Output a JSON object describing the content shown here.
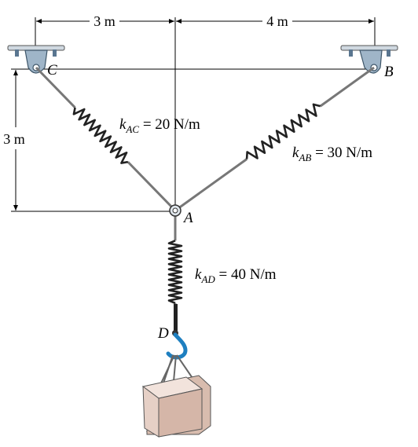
{
  "dimensions": {
    "top_left": "3 m",
    "top_right": "4 m",
    "left_vertical": "3 m"
  },
  "points": {
    "C": "C",
    "B": "B",
    "A": "A",
    "D": "D"
  },
  "springs": {
    "AC": {
      "k": "k",
      "sub": "AC",
      "value": " = 20 N/m"
    },
    "AB": {
      "k": "k",
      "sub": "AB",
      "value": " = 30 N/m"
    },
    "AD": {
      "k": "k",
      "sub": "AD",
      "value": " = 40 N/m"
    }
  },
  "colors": {
    "support": "#9fb5c8",
    "support_dark": "#5a7690",
    "hook": "#1e7fc0",
    "box": "#e9d3c9",
    "box_side": "#d6b9ad",
    "rod": "#888888"
  }
}
